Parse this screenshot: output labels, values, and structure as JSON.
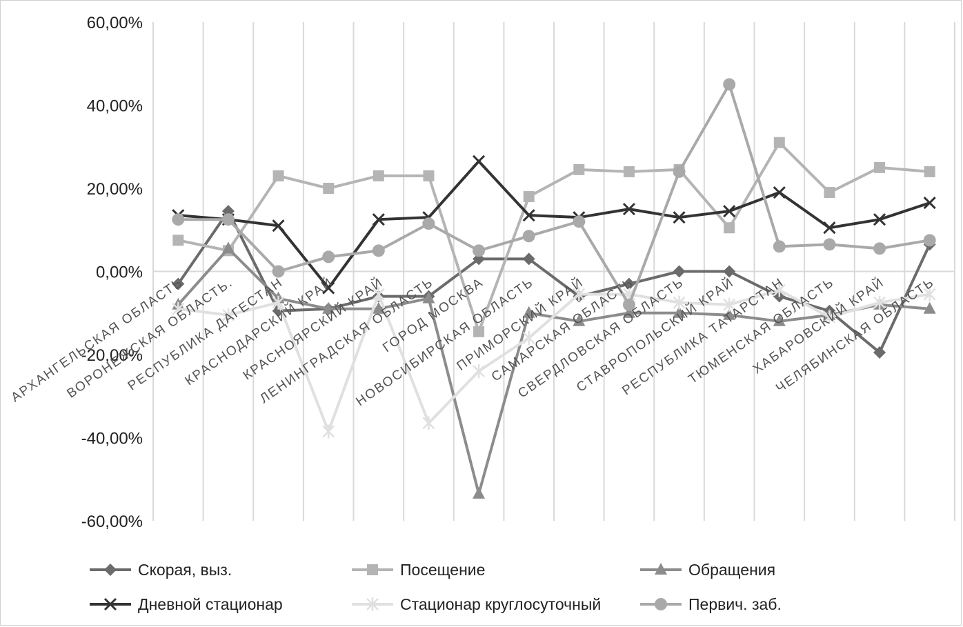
{
  "chart_data": {
    "type": "line",
    "categories": [
      "АРХАНГЕЛЬСКАЯ ОБЛАСТЬ",
      "ВОРОНЕЖСКАЯ ОБЛАСТЬ.",
      "РЕСПУБЛИКА ДАГЕСТАН",
      "КРАСНОДАРСКИЙ КРАЙ",
      "КРАСНОЯРСКИЙ КРАЙ",
      "ЛЕНИНГРАДСКАЯ ОБЛАСТЬ",
      "ГОРОД МОСКВА",
      "НОВОСИБИРСКАЯ ОБЛАСТЬ",
      "ПРИМОРСКИЙ КРАЙ",
      "САМАРСКАЯ ОБЛАСТЬ",
      "СВЕРДЛОВСКАЯ ОБЛАСТЬ",
      "СТАВРОПОЛЬСКИЙ КРАЙ",
      "РЕСПУБЛИКА ТАТАРСТАН",
      "ТЮМЕНСКАЯ ОБЛАСТЬ",
      "ХАБАРОВСКИЙ КРАЙ",
      "ЧЕЛЯБИНСКАЯ ОБЛАСТЬ"
    ],
    "series": [
      {
        "name": "Скорая, выз.",
        "color": "#6b6b6b",
        "marker": "diamond",
        "values": [
          -3,
          14.5,
          -9.5,
          -9,
          -6,
          -6,
          3,
          3,
          -6,
          -3,
          0,
          0,
          -6,
          -9.5,
          -19.5,
          6.5
        ]
      },
      {
        "name": "Посещение",
        "color": "#b4b4b4",
        "marker": "square",
        "values": [
          7.5,
          5,
          23,
          20,
          23,
          23,
          -14.5,
          18,
          24.5,
          24,
          24.5,
          10.5,
          31,
          19,
          25,
          24
        ]
      },
      {
        "name": "Обращения",
        "color": "#8c8c8c",
        "marker": "triangle",
        "values": [
          -8,
          5.5,
          -6.5,
          -9,
          -9,
          -6.5,
          -53.5,
          -10,
          -12,
          -10,
          -10,
          -10.5,
          -12,
          -10.5,
          -8,
          -9
        ]
      },
      {
        "name": "Дневной стационар",
        "color": "#333333",
        "marker": "x",
        "values": [
          13.5,
          12.5,
          11,
          -4,
          12.5,
          13,
          26.5,
          13.5,
          13,
          15,
          13,
          14.5,
          19,
          10.5,
          12.5,
          16.5
        ]
      },
      {
        "name": "Стационар круглосуточный",
        "color": "#e0e0e0",
        "marker": "asterisk",
        "values": [
          -9,
          -10.5,
          -7.5,
          -38.5,
          -5.5,
          -36.5,
          -24,
          -16,
          -5.5,
          -5.5,
          -7.5,
          -8,
          -4.5,
          -11,
          -7.5,
          -5.5
        ]
      },
      {
        "name": "Первич. заб.",
        "color": "#a9a9a9",
        "marker": "circle",
        "values": [
          12.5,
          12.5,
          0,
          3.5,
          5,
          11.5,
          5,
          8.5,
          12,
          -8,
          24,
          45,
          6,
          6.5,
          5.5,
          7.5
        ]
      }
    ],
    "ylim": [
      -60,
      60
    ],
    "yticks": [
      "60,00%",
      "40,00%",
      "20,00%",
      "0,00%",
      "-20,00%",
      "-40,00%",
      "-60,00%"
    ],
    "ytick_values": [
      60,
      40,
      20,
      0,
      -20,
      -40,
      -60
    ],
    "grid": "vertical",
    "legend_position": "bottom"
  }
}
